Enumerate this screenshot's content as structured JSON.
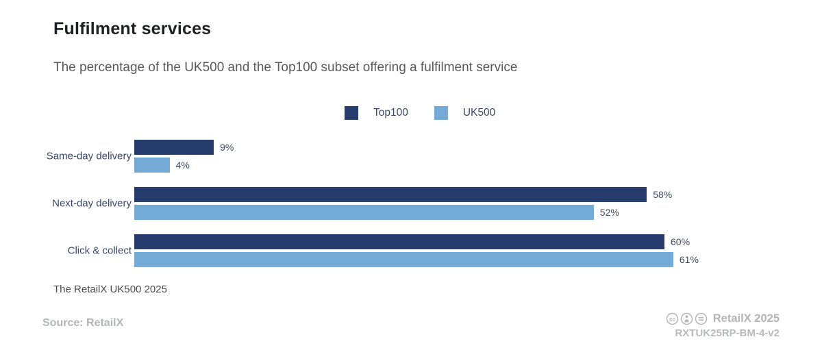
{
  "header": {
    "title": "Fulfilment services",
    "subtitle": "The percentage of the UK500 and the Top100 subset offering a fulfilment service"
  },
  "colors": {
    "top100": "#253c6d",
    "uk500": "#74abd6",
    "category_label": "#36466b",
    "value_label": "#3f4a66",
    "muted_gray": "#b3b4b6"
  },
  "chart_data": {
    "type": "bar",
    "orientation": "horizontal",
    "title": "Fulfilment services",
    "subtitle": "The percentage of the UK500 and the Top100 subset offering a fulfilment service",
    "categories": [
      "Same-day delivery",
      "Next-day delivery",
      "Click & collect"
    ],
    "series": [
      {
        "name": "Top100",
        "color": "#253c6d",
        "values": [
          9,
          58,
          60
        ]
      },
      {
        "name": "UK500",
        "color": "#74abd6",
        "values": [
          4,
          52,
          61
        ]
      }
    ],
    "value_suffix": "%",
    "xlim": [
      0,
      67
    ],
    "grid": false,
    "legend_position": "top-center",
    "value_labels": "outside-end"
  },
  "footer": {
    "note": "The RetailX UK500 2025",
    "source": "Source: RetailX",
    "credit": "RetailX 2025",
    "code": "RXTUK25RP-BM-4-v2",
    "license_icons": [
      "cc-icon",
      "attribution-icon",
      "no-derivatives-icon"
    ]
  }
}
